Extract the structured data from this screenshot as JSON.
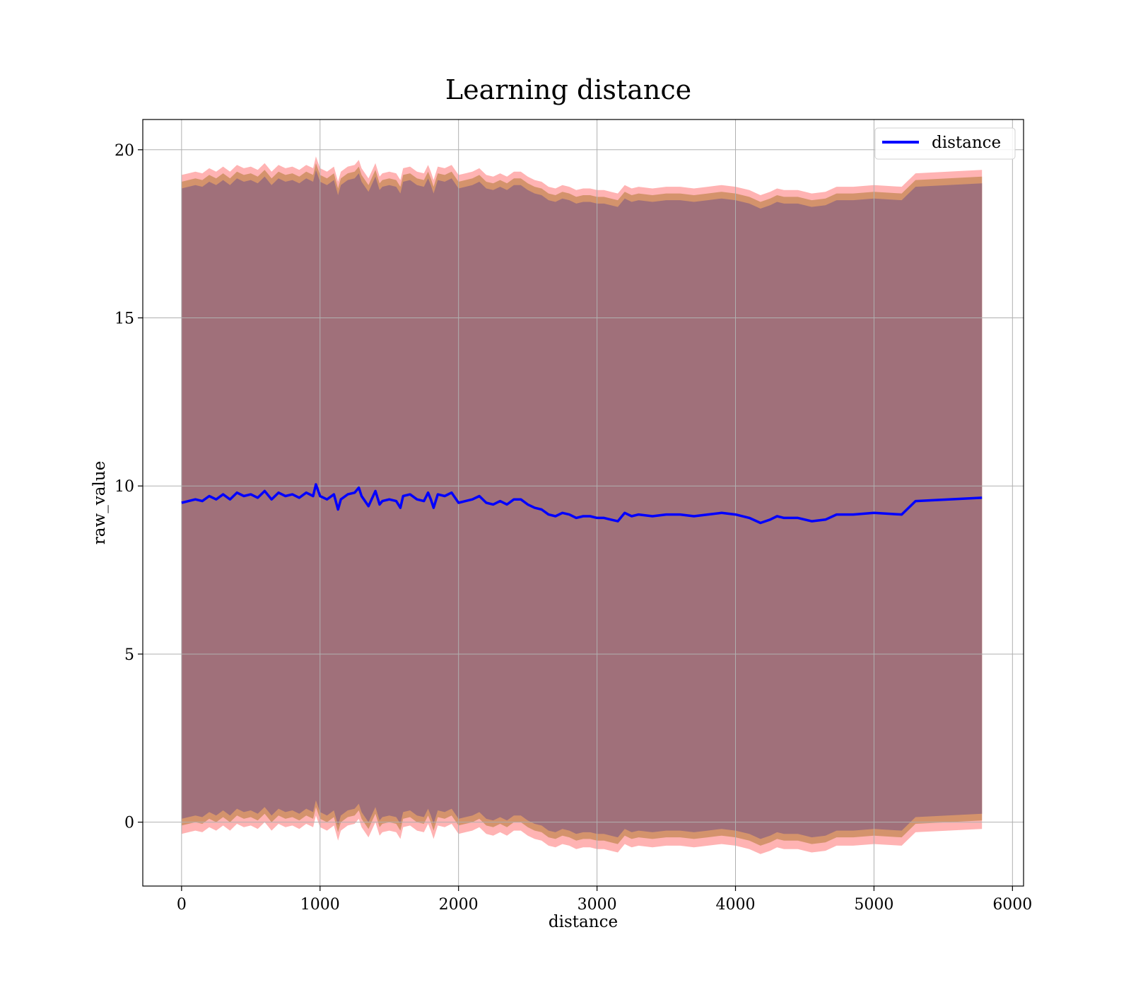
{
  "chart_data": {
    "type": "line",
    "title": "Learning distance",
    "xlabel": "distance",
    "ylabel": "raw_value",
    "xlim": [
      -280,
      6080
    ],
    "ylim": [
      -1.9,
      20.9
    ],
    "xticks": [
      0,
      1000,
      2000,
      3000,
      4000,
      5000,
      6000
    ],
    "yticks": [
      0,
      5,
      10,
      15,
      20
    ],
    "grid": true,
    "legend": {
      "placement": "top-right",
      "entries": [
        "distance"
      ]
    },
    "colors": {
      "line": "#0000ff",
      "band_outer": "#ff9a9a",
      "band_middle": "#c98b5a",
      "band_inner": "#a0707a",
      "grid": "#b0b0b0"
    },
    "series": [
      {
        "name": "distance",
        "x": [
          0,
          50,
          100,
          150,
          200,
          250,
          300,
          350,
          400,
          450,
          500,
          550,
          600,
          650,
          700,
          750,
          800,
          850,
          900,
          950,
          970,
          1000,
          1050,
          1100,
          1130,
          1150,
          1200,
          1250,
          1280,
          1300,
          1350,
          1400,
          1430,
          1450,
          1500,
          1550,
          1580,
          1600,
          1650,
          1700,
          1750,
          1780,
          1800,
          1820,
          1850,
          1900,
          1950,
          2000,
          2050,
          2100,
          2150,
          2200,
          2250,
          2300,
          2350,
          2400,
          2450,
          2500,
          2550,
          2600,
          2650,
          2700,
          2750,
          2800,
          2850,
          2900,
          2950,
          3000,
          3050,
          3100,
          3150,
          3200,
          3250,
          3300,
          3400,
          3500,
          3600,
          3700,
          3800,
          3900,
          4000,
          4100,
          4180,
          4250,
          4300,
          4350,
          4450,
          4550,
          4650,
          4730,
          4850,
          5000,
          5200,
          5300,
          5780
        ],
        "values": [
          9.5,
          9.55,
          9.6,
          9.55,
          9.7,
          9.6,
          9.75,
          9.6,
          9.8,
          9.7,
          9.75,
          9.65,
          9.85,
          9.6,
          9.8,
          9.7,
          9.75,
          9.65,
          9.8,
          9.7,
          10.05,
          9.7,
          9.6,
          9.75,
          9.3,
          9.6,
          9.75,
          9.8,
          9.95,
          9.7,
          9.4,
          9.85,
          9.45,
          9.55,
          9.6,
          9.55,
          9.35,
          9.7,
          9.75,
          9.6,
          9.55,
          9.8,
          9.6,
          9.35,
          9.75,
          9.7,
          9.8,
          9.5,
          9.55,
          9.6,
          9.7,
          9.5,
          9.45,
          9.55,
          9.45,
          9.6,
          9.6,
          9.45,
          9.35,
          9.3,
          9.15,
          9.1,
          9.2,
          9.15,
          9.05,
          9.1,
          9.1,
          9.05,
          9.05,
          9.0,
          8.95,
          9.2,
          9.1,
          9.15,
          9.1,
          9.15,
          9.15,
          9.1,
          9.15,
          9.2,
          9.15,
          9.05,
          8.9,
          9.0,
          9.1,
          9.05,
          9.05,
          8.95,
          9.0,
          9.15,
          9.15,
          9.2,
          9.15,
          9.55,
          9.65
        ]
      }
    ]
  }
}
